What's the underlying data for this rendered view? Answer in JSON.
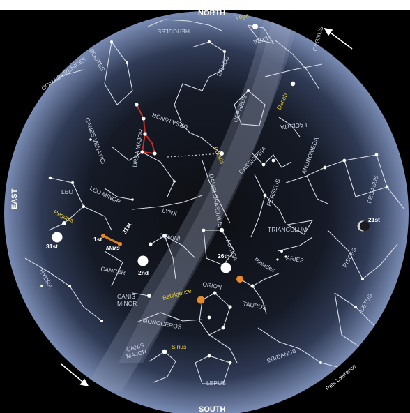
{
  "colors": {
    "sky_edge": "#7a8cb4",
    "sky_mid": "#2f3a55",
    "sky_center": "#0d0e12",
    "milky_way": "#8e9ab4",
    "outer_background": "#000000",
    "star": "#ffffff",
    "highlight_star": "#e88a2a",
    "yellow_label": "#e9d23a"
  },
  "compass": {
    "north": "NORTH",
    "south": "SOUTH",
    "east": "EAST",
    "west": "WEST"
  },
  "constellations": [
    "HERCULES",
    "LYRA",
    "CYGNUS",
    "BOOTES",
    "COMA BERENICES",
    "DRACO",
    "CANES VENATICI",
    "URSA MINOR",
    "URSA MAJOR",
    "CEPHEUS",
    "LACERTA",
    "DAMELOPARDALIS",
    "CASSIOPEIA",
    "ANDROMEDA",
    "PEGASUS",
    "LEO MINOR",
    "LEO",
    "LYNX",
    "PERSEUS",
    "TRIANGULUM",
    "ARIES",
    "GEMINI",
    "AURIGA",
    "CANCER",
    "HYDRA",
    "CANIS MINOR",
    "ORION",
    "TAURUS",
    "PISCES",
    "CETUS",
    "MONOCEROS",
    "CANIS MAJOR",
    "LEPUS",
    "ERIDANUS"
  ],
  "stars": [
    "Vega",
    "Deneb",
    "Polaris",
    "Regulus",
    "Betelgeuse",
    "Sirius",
    "Pleiades"
  ],
  "moons": {
    "moon_31st": "31st",
    "moon_1st": "1st",
    "moon_2nd": "2nd",
    "moon_26th": "26th",
    "moon_21st": "21st"
  },
  "planet_label": "Mars",
  "date_label": "31st",
  "credit": "Pete Lawrence"
}
